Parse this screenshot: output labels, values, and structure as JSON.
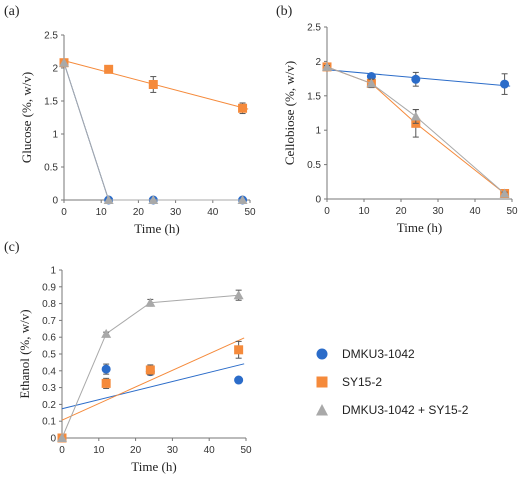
{
  "colors": {
    "dmku": "#2B6CC9",
    "sy": "#F58A3B",
    "mix": "#A9A9A9",
    "axis": "#777777"
  },
  "legend": {
    "items": [
      {
        "label": "DMKU3-1042",
        "marker": "circle",
        "color": "#2B6CC9"
      },
      {
        "label": "SY15-2",
        "marker": "square",
        "color": "#F58A3B"
      },
      {
        "label": "DMKU3-1042 + SY15-2",
        "marker": "triangle",
        "color": "#A9A9A9"
      }
    ]
  },
  "chart_data": [
    {
      "type": "scatter",
      "panel_label": "(a)",
      "xlabel": "Time (h)",
      "ylabel": "Glucose (%, w/v)",
      "xlim": [
        0,
        50
      ],
      "ylim": [
        0,
        2.5
      ],
      "xticks": [
        "0",
        "10",
        "20",
        "30",
        "40",
        "50"
      ],
      "yticks": [
        "0",
        "0.5",
        "1",
        "1.5",
        "2",
        "2.5"
      ],
      "series": [
        {
          "name": "DMKU3-1042",
          "marker": "circle",
          "line": "connected",
          "x": [
            0,
            12,
            24,
            48
          ],
          "y": [
            2.08,
            0.0,
            0.0,
            0.0
          ],
          "err": [
            0,
            0,
            0,
            0
          ]
        },
        {
          "name": "SY15-2",
          "marker": "square",
          "line": "trend",
          "x": [
            0,
            12,
            24,
            48
          ],
          "y": [
            2.08,
            1.98,
            1.75,
            1.39
          ],
          "err": [
            0.03,
            0.03,
            0.12,
            0.08
          ]
        },
        {
          "name": "DMKU3-1042 + SY15-2",
          "marker": "triangle",
          "line": "connected",
          "x": [
            0,
            12,
            24,
            48
          ],
          "y": [
            2.08,
            0.0,
            0.0,
            0.0
          ],
          "err": [
            0,
            0,
            0,
            0
          ]
        }
      ]
    },
    {
      "type": "scatter",
      "panel_label": "(b)",
      "xlabel": "Time (h)",
      "ylabel": "Cellobiose (%, w/v)",
      "xlim": [
        0,
        50
      ],
      "ylim": [
        0,
        2.5
      ],
      "xticks": [
        "0",
        "10",
        "20",
        "30",
        "40",
        "50"
      ],
      "yticks": [
        "0",
        "0.5",
        "1",
        "1.5",
        "2",
        "2.5"
      ],
      "series": [
        {
          "name": "DMKU3-1042",
          "marker": "circle",
          "line": "trend",
          "x": [
            0,
            12,
            24,
            48
          ],
          "y": [
            1.92,
            1.78,
            1.74,
            1.67
          ],
          "err": [
            0.02,
            0.03,
            0.1,
            0.15
          ]
        },
        {
          "name": "SY15-2",
          "marker": "square",
          "line": "connected",
          "x": [
            0,
            12,
            24,
            48
          ],
          "y": [
            1.92,
            1.68,
            1.1,
            0.08
          ],
          "err": [
            0.02,
            0.06,
            0.2,
            0.02
          ]
        },
        {
          "name": "DMKU3-1042 + SY15-2",
          "marker": "triangle",
          "line": "connected",
          "x": [
            0,
            12,
            24,
            48
          ],
          "y": [
            1.92,
            1.68,
            1.2,
            0.08
          ],
          "err": [
            0.02,
            0.06,
            0.1,
            0.02
          ]
        }
      ]
    },
    {
      "type": "scatter",
      "panel_label": "(c)",
      "xlabel": "Time (h)",
      "ylabel": "Ethanol (%, w/v)",
      "xlim": [
        0,
        50
      ],
      "ylim": [
        0,
        1
      ],
      "xticks": [
        "0",
        "10",
        "20",
        "30",
        "40",
        "50"
      ],
      "yticks": [
        "0",
        "0.1",
        "0.2",
        "0.3",
        "0.4",
        "0.5",
        "0.6",
        "0.7",
        "0.8",
        "0.9",
        "1"
      ],
      "series": [
        {
          "name": "DMKU3-1042",
          "marker": "circle",
          "line": "trend",
          "x": [
            0,
            12,
            24,
            48
          ],
          "y": [
            0.0,
            0.41,
            0.395,
            0.345
          ],
          "err": [
            0,
            0.03,
            0.02,
            0.01
          ]
        },
        {
          "name": "SY15-2",
          "marker": "square",
          "line": "trend",
          "x": [
            0,
            12,
            24,
            48
          ],
          "y": [
            0.0,
            0.325,
            0.405,
            0.525
          ],
          "err": [
            0,
            0.03,
            0.03,
            0.05
          ]
        },
        {
          "name": "DMKU3-1042 + SY15-2",
          "marker": "triangle",
          "line": "connected",
          "x": [
            0,
            12,
            24,
            48
          ],
          "y": [
            0.0,
            0.62,
            0.805,
            0.85
          ],
          "err": [
            0,
            0.01,
            0.02,
            0.03
          ]
        }
      ]
    }
  ]
}
